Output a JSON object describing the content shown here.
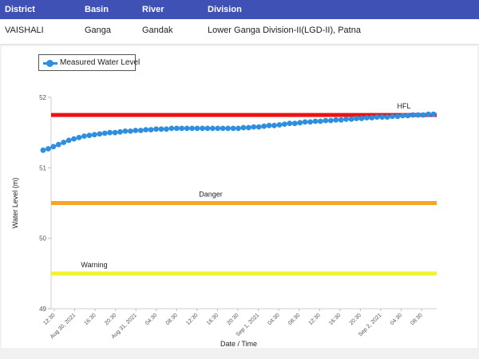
{
  "table": {
    "headers": [
      "District",
      "Basin",
      "River",
      "Division"
    ],
    "row": [
      "VAISHALI",
      "Ganga",
      "Gandak",
      "Lower Ganga Division-II(LGD-II), Patna"
    ]
  },
  "colors": {
    "header_bg": "#3f51b5",
    "series": "#2e8fe0",
    "hfl": "#ee1111",
    "danger": "#f5a623",
    "warning": "#f2f230"
  },
  "legend": {
    "label": "Measured Water Level"
  },
  "chart_data": {
    "type": "line",
    "xlabel": "Date / Time",
    "ylabel": "Water Level (m)",
    "ylim": [
      49,
      52
    ],
    "y_ticks": [
      "49",
      "50",
      "51",
      "52"
    ],
    "grid": false,
    "legend_position": "top-left",
    "x_tick_labels": [
      "12:30",
      "Aug 30, 2021",
      "16:30",
      "20:30",
      "Aug 31, 2021",
      "04:30",
      "08:30",
      "12:30",
      "16:30",
      "20:30",
      "Sep 1, 2021",
      "04:30",
      "08:30",
      "12:30",
      "16:30",
      "20:30",
      "Sep 2, 2021",
      "04:30",
      "08:30"
    ],
    "x_start_hour": 12,
    "point_step_hours": 1,
    "series": [
      {
        "name": "Measured Water Level",
        "values": [
          51.25,
          51.27,
          51.3,
          51.33,
          51.36,
          51.39,
          51.41,
          51.43,
          51.45,
          51.46,
          51.47,
          51.48,
          51.49,
          51.5,
          51.5,
          51.51,
          51.52,
          51.52,
          51.53,
          51.53,
          51.54,
          51.54,
          51.55,
          51.55,
          51.55,
          51.56,
          51.56,
          51.56,
          51.56,
          51.56,
          51.56,
          51.56,
          51.56,
          51.56,
          51.56,
          51.56,
          51.56,
          51.56,
          51.56,
          51.57,
          51.57,
          51.58,
          51.58,
          51.59,
          51.6,
          51.6,
          51.61,
          51.62,
          51.63,
          51.63,
          51.64,
          51.65,
          51.65,
          51.66,
          51.66,
          51.67,
          51.67,
          51.68,
          51.68,
          51.69,
          51.69,
          51.7,
          51.7,
          51.71,
          51.71,
          51.72,
          51.72,
          51.72,
          51.73,
          51.73,
          51.74,
          51.74,
          51.75,
          51.75,
          51.75,
          51.76,
          51.76
        ]
      }
    ],
    "reference_lines": [
      {
        "label": "HFL",
        "value": 51.75
      },
      {
        "label": "Danger",
        "value": 50.5
      },
      {
        "label": "Warning",
        "value": 49.5
      }
    ]
  }
}
